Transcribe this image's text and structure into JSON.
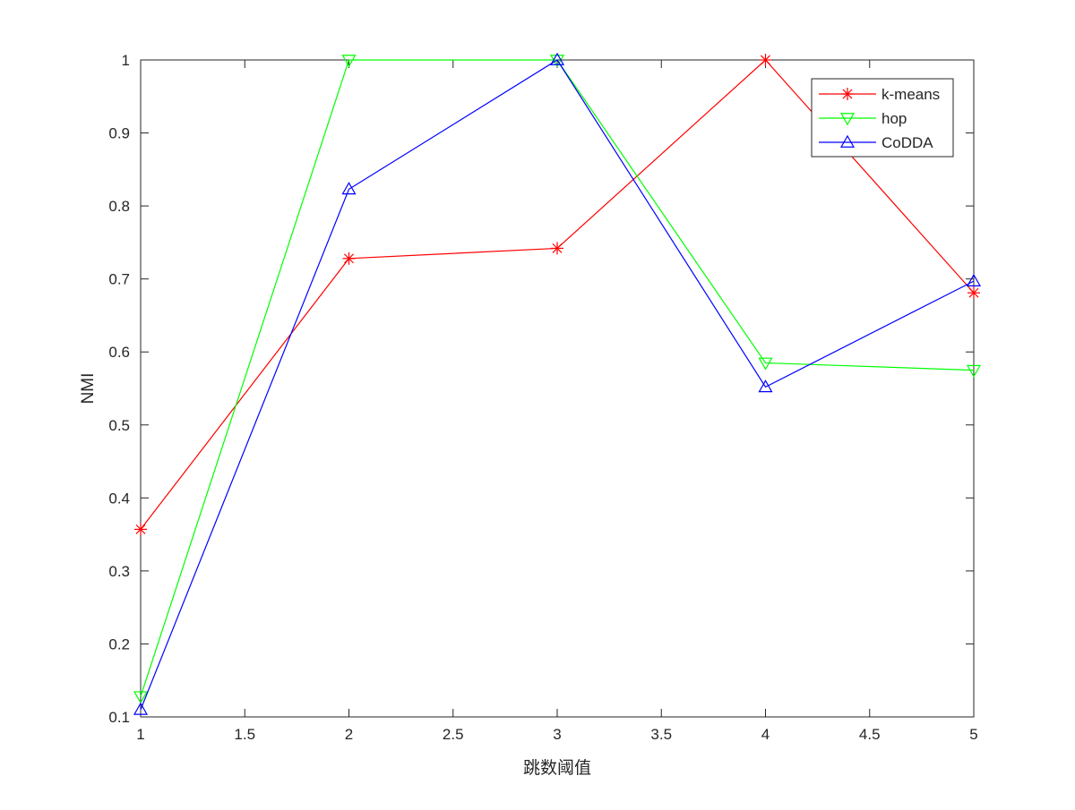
{
  "chart_data": {
    "type": "line",
    "title": "",
    "xlabel": "跳数阈值",
    "ylabel": "NMI",
    "xlim": [
      1,
      5
    ],
    "ylim": [
      0.1,
      1
    ],
    "xticks": [
      1,
      1.5,
      2,
      2.5,
      3,
      3.5,
      4,
      4.5,
      5
    ],
    "xtick_labels": [
      "1",
      "1.5",
      "2",
      "2.5",
      "3",
      "3.5",
      "4",
      "4.5",
      "5"
    ],
    "yticks": [
      0.1,
      0.2,
      0.3,
      0.4,
      0.5,
      0.6,
      0.7,
      0.8,
      0.9,
      1
    ],
    "ytick_labels": [
      "0.1",
      "0.2",
      "0.3",
      "0.4",
      "0.5",
      "0.6",
      "0.7",
      "0.8",
      "0.9",
      "1"
    ],
    "grid": false,
    "box": true,
    "legend_position": "top-right",
    "x": [
      1,
      2,
      3,
      4,
      5
    ],
    "series": [
      {
        "name": "k-means",
        "values": [
          0.357,
          0.728,
          0.742,
          1.0,
          0.681
        ],
        "color": "#ff0000",
        "marker": "asterisk"
      },
      {
        "name": "hop",
        "values": [
          0.128,
          1.0,
          1.0,
          0.585,
          0.575
        ],
        "color": "#00ff00",
        "marker": "triangle-down"
      },
      {
        "name": "CoDDA",
        "values": [
          0.11,
          0.823,
          1.0,
          0.552,
          0.697
        ],
        "color": "#0000ff",
        "marker": "triangle-up"
      }
    ]
  }
}
